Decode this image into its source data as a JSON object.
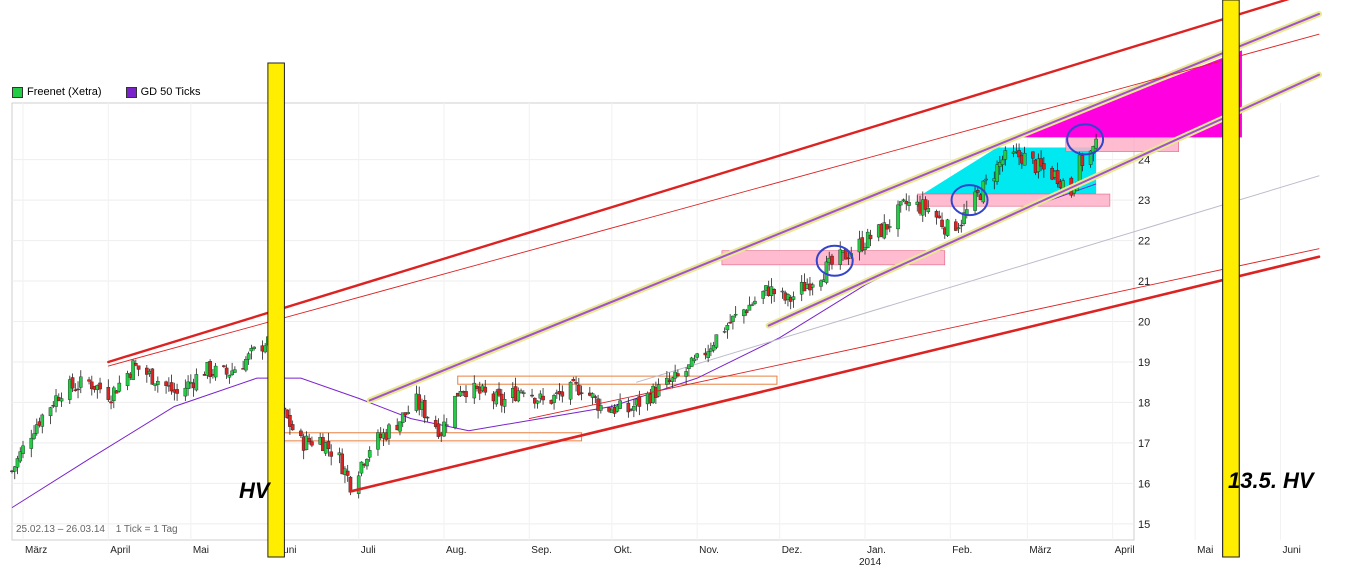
{
  "legend": [
    {
      "label": "Freenet (Xetra)",
      "color": "#22cc44"
    },
    {
      "label": "GD 50 Ticks",
      "color": "#7a22cc"
    }
  ],
  "annotations": {
    "hv_left": "HV",
    "hv_right": "13.5. HV"
  },
  "footer": {
    "date_range": "25.02.13 – 26.03.14",
    "tick_info": "1 Tick = 1 Tag"
  },
  "colors": {
    "up_candle": "#22cc44",
    "down_candle": "#dd2222",
    "ma_line": "#7a22cc",
    "trend_red": "#dd2222",
    "channel_purple": "#a050d0",
    "channel_yellow": "#e8e890",
    "hv_bar": "#ffee00",
    "resistance_zone": "#ffb0c8",
    "cyan_zone": "#00e8f0",
    "magenta_zone": "#ff00e0",
    "range_box": "#e88040",
    "circle": "#3344cc"
  },
  "chart_data": {
    "type": "candlestick",
    "y_axis": {
      "min": 14.6,
      "max": 25.4,
      "ticks": [
        15,
        16,
        17,
        18,
        19,
        20,
        21,
        22,
        23,
        24
      ]
    },
    "x_axis": {
      "start": "2013-02-25",
      "end": "2014-06-15",
      "month_labels": [
        {
          "label": "März",
          "date": "2013-03-01"
        },
        {
          "label": "April",
          "date": "2013-04-01"
        },
        {
          "label": "Mai",
          "date": "2013-05-01"
        },
        {
          "label": "Juni",
          "date": "2013-06-01"
        },
        {
          "label": "Juli",
          "date": "2013-07-01"
        },
        {
          "label": "Aug.",
          "date": "2013-08-01"
        },
        {
          "label": "Sep.",
          "date": "2013-09-01"
        },
        {
          "label": "Okt.",
          "date": "2013-10-01"
        },
        {
          "label": "Nov.",
          "date": "2013-11-01"
        },
        {
          "label": "Dez.",
          "date": "2013-12-01"
        },
        {
          "label": "Jan.",
          "date": "2014-01-01"
        },
        {
          "label": "Feb.",
          "date": "2014-02-01"
        },
        {
          "label": "März",
          "date": "2014-03-01"
        },
        {
          "label": "April",
          "date": "2014-04-01"
        },
        {
          "label": "Mai",
          "date": "2014-05-01"
        },
        {
          "label": "Juni",
          "date": "2014-06-01"
        }
      ],
      "year_label": {
        "label": "2014",
        "date": "2014-01-01"
      }
    },
    "price_anchors": [
      [
        "2013-02-25",
        16.3
      ],
      [
        "2013-03-05",
        17.4
      ],
      [
        "2013-03-15",
        18.3
      ],
      [
        "2013-03-25",
        18.5
      ],
      [
        "2013-04-02",
        18.2
      ],
      [
        "2013-04-10",
        18.9
      ],
      [
        "2013-04-18",
        18.6
      ],
      [
        "2013-04-26",
        18.2
      ],
      [
        "2013-05-06",
        18.8
      ],
      [
        "2013-05-14",
        18.7
      ],
      [
        "2013-05-22",
        19.1
      ],
      [
        "2013-05-28",
        19.5
      ],
      [
        "2013-05-31",
        19.3
      ],
      [
        "2013-06-03",
        17.8
      ],
      [
        "2013-06-10",
        17.0
      ],
      [
        "2013-06-17",
        17.1
      ],
      [
        "2013-06-24",
        16.6
      ],
      [
        "2013-06-28",
        16.0
      ],
      [
        "2013-07-05",
        16.9
      ],
      [
        "2013-07-15",
        17.5
      ],
      [
        "2013-07-22",
        18.0
      ],
      [
        "2013-07-31",
        17.3
      ],
      [
        "2013-08-07",
        18.4
      ],
      [
        "2013-08-15",
        18.2
      ],
      [
        "2013-08-22",
        18.0
      ],
      [
        "2013-08-30",
        18.4
      ],
      [
        "2013-09-06",
        18.0
      ],
      [
        "2013-09-13",
        18.2
      ],
      [
        "2013-09-20",
        18.4
      ],
      [
        "2013-09-27",
        17.9
      ],
      [
        "2013-10-07",
        17.8
      ],
      [
        "2013-10-15",
        18.2
      ],
      [
        "2013-10-25",
        18.6
      ],
      [
        "2013-11-01",
        19.0
      ],
      [
        "2013-11-10",
        19.8
      ],
      [
        "2013-11-20",
        20.4
      ],
      [
        "2013-11-27",
        20.8
      ],
      [
        "2013-12-04",
        20.5
      ],
      [
        "2013-12-12",
        21.0
      ],
      [
        "2013-12-20",
        21.4
      ],
      [
        "2013-12-30",
        21.9
      ],
      [
        "2014-01-08",
        22.3
      ],
      [
        "2014-01-16",
        22.9
      ],
      [
        "2014-01-24",
        22.8
      ],
      [
        "2014-01-31",
        22.3
      ],
      [
        "2014-02-05",
        22.5
      ],
      [
        "2014-02-12",
        23.2
      ],
      [
        "2014-02-20",
        24.0
      ],
      [
        "2014-02-27",
        24.1
      ],
      [
        "2014-03-05",
        23.8
      ],
      [
        "2014-03-12",
        23.6
      ],
      [
        "2014-03-17",
        23.2
      ],
      [
        "2014-03-20",
        23.9
      ],
      [
        "2014-03-26",
        24.3
      ]
    ],
    "moving_average_anchors": [
      [
        "2013-02-25",
        15.4
      ],
      [
        "2013-03-25",
        16.6
      ],
      [
        "2013-04-25",
        17.9
      ],
      [
        "2013-05-25",
        18.6
      ],
      [
        "2013-06-10",
        18.6
      ],
      [
        "2013-07-01",
        18.1
      ],
      [
        "2013-07-20",
        17.6
      ],
      [
        "2013-08-10",
        17.3
      ],
      [
        "2013-09-05",
        17.6
      ],
      [
        "2013-10-01",
        17.9
      ],
      [
        "2013-11-01",
        18.6
      ],
      [
        "2013-12-01",
        19.6
      ],
      [
        "2014-01-01",
        20.9
      ],
      [
        "2014-02-01",
        22.0
      ],
      [
        "2014-03-01",
        22.8
      ],
      [
        "2014-03-26",
        23.4
      ]
    ]
  }
}
